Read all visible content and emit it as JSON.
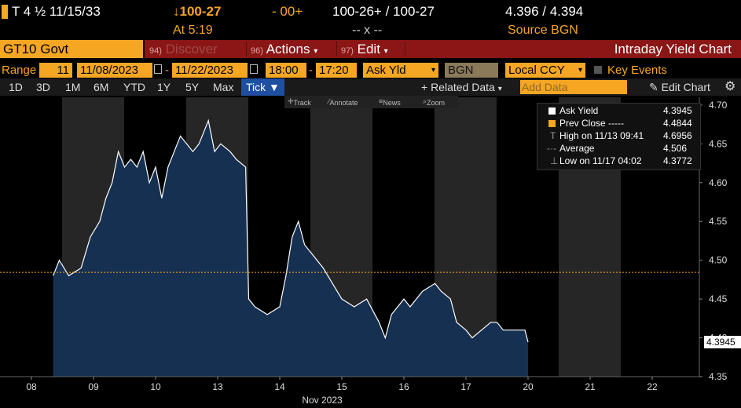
{
  "header": {
    "security": "T 4 ½ 11/15/33",
    "change": "↓100-27",
    "change2": "- 00+",
    "bid_ask_price": "100-26+ / 100-27",
    "bid_ask_yield": "4.396 / 4.394",
    "time": "At 5:19",
    "size": "-- x --",
    "source": "Source BGN"
  },
  "toolbar": {
    "ticker": "GT10 Govt",
    "discover_num": "94)",
    "discover": "Discover",
    "actions_num": "96)",
    "actions": "Actions",
    "edit_num": "97)",
    "edit": "Edit",
    "title": "Intraday Yield Chart"
  },
  "range": {
    "label": "Range",
    "interval": "11",
    "start_date": "11/08/2023",
    "end_date": "11/22/2023",
    "start_time": "18:00",
    "end_time": "17:20",
    "field": "Ask Yld",
    "source": "BGN",
    "currency": "Local CCY",
    "key_events": "Key Events"
  },
  "tabs": [
    "1D",
    "3D",
    "1M",
    "6M",
    "YTD",
    "1Y",
    "5Y",
    "Max"
  ],
  "active_tab": "Tick ▼",
  "related_data": "+ Related Data",
  "add_data_placeholder": "Add Data",
  "edit_chart": "Edit Chart",
  "chart_tools": [
    "Track",
    "Annotate",
    "News",
    "Zoom"
  ],
  "colors": {
    "accent": "#f5a623",
    "area": "#163052",
    "line": "#ffffff",
    "prev_close": "#f5a623",
    "toolbar_red": "#8b1616"
  },
  "chart_data": {
    "type": "area",
    "title": "Intraday Yield Chart",
    "x_categories": [
      "08",
      "09",
      "10",
      "13",
      "14",
      "15",
      "16",
      "17",
      "20",
      "21",
      "22"
    ],
    "xlabel": "Nov 2023",
    "ylim": [
      4.35,
      4.71
    ],
    "y_ticks": [
      "4.35",
      "4.40",
      "4.45",
      "4.50",
      "4.55",
      "4.60",
      "4.65",
      "4.70"
    ],
    "last_value_label": "4.3945",
    "prev_close": 4.4844,
    "legend": [
      {
        "name": "Ask Yield",
        "value": "4.3945"
      },
      {
        "name": "Prev Close -----",
        "value": "4.4844"
      },
      {
        "name": "High on 11/13 09:41",
        "value": "4.6956"
      },
      {
        "name": "Average",
        "value": "4.506"
      },
      {
        "name": "Low on 11/17 04:02",
        "value": "4.3772"
      }
    ],
    "series": [
      {
        "name": "Ask Yield",
        "points": [
          [
            0.35,
            4.48
          ],
          [
            0.45,
            4.5
          ],
          [
            0.6,
            4.48
          ],
          [
            0.8,
            4.49
          ],
          [
            0.95,
            4.53
          ],
          [
            1.1,
            4.55
          ],
          [
            1.2,
            4.58
          ],
          [
            1.3,
            4.6
          ],
          [
            1.4,
            4.64
          ],
          [
            1.5,
            4.62
          ],
          [
            1.6,
            4.63
          ],
          [
            1.7,
            4.62
          ],
          [
            1.8,
            4.64
          ],
          [
            1.9,
            4.6
          ],
          [
            2.0,
            4.62
          ],
          [
            2.1,
            4.58
          ],
          [
            2.2,
            4.62
          ],
          [
            2.3,
            4.64
          ],
          [
            2.4,
            4.66
          ],
          [
            2.5,
            4.65
          ],
          [
            2.6,
            4.64
          ],
          [
            2.7,
            4.65
          ],
          [
            2.85,
            4.68
          ],
          [
            2.95,
            4.64
          ],
          [
            3.05,
            4.65
          ],
          [
            3.2,
            4.64
          ],
          [
            3.3,
            4.63
          ],
          [
            3.45,
            4.62
          ],
          [
            3.5,
            4.45
          ],
          [
            3.6,
            4.44
          ],
          [
            3.8,
            4.43
          ],
          [
            4.0,
            4.44
          ],
          [
            4.1,
            4.48
          ],
          [
            4.2,
            4.53
          ],
          [
            4.3,
            4.55
          ],
          [
            4.4,
            4.52
          ],
          [
            4.5,
            4.51
          ],
          [
            4.7,
            4.49
          ],
          [
            4.85,
            4.47
          ],
          [
            5.0,
            4.45
          ],
          [
            5.2,
            4.44
          ],
          [
            5.4,
            4.45
          ],
          [
            5.6,
            4.42
          ],
          [
            5.7,
            4.4
          ],
          [
            5.8,
            4.43
          ],
          [
            5.9,
            4.44
          ],
          [
            6.0,
            4.45
          ],
          [
            6.1,
            4.44
          ],
          [
            6.2,
            4.45
          ],
          [
            6.3,
            4.46
          ],
          [
            6.5,
            4.47
          ],
          [
            6.6,
            4.46
          ],
          [
            6.75,
            4.45
          ],
          [
            6.85,
            4.42
          ],
          [
            7.0,
            4.41
          ],
          [
            7.1,
            4.4
          ],
          [
            7.25,
            4.41
          ],
          [
            7.4,
            4.42
          ],
          [
            7.5,
            4.42
          ],
          [
            7.6,
            4.41
          ],
          [
            7.75,
            4.41
          ],
          [
            7.95,
            4.41
          ],
          [
            8.0,
            4.3945
          ]
        ]
      }
    ]
  }
}
